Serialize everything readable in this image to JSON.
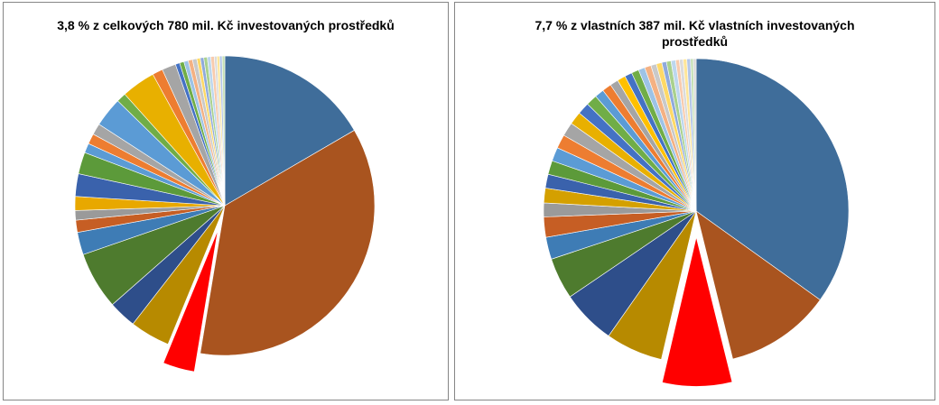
{
  "charts": [
    {
      "title": "3,8 % z celkových 780 mil. Kč investovaných prostředků"
    },
    {
      "title": "7,7 % z vlastních 387 mil. Kč vlastních investovaných prostředků"
    }
  ],
  "chart_data": [
    {
      "type": "pie",
      "title": "3,8 % z celkových 780 mil. Kč investovaných prostředků",
      "highlight_index": 2,
      "highlight_color": "#FF0000",
      "values": [
        17.7,
        38.4,
        3.8,
        4.6,
        3.2,
        6.6,
        2.6,
        1.4,
        1.1,
        1.6,
        2.6,
        2.5,
        1.1,
        1.2,
        1.3,
        3.4,
        1.1,
        3.9,
        1.2,
        1.6,
        0.5,
        0.5,
        0.5,
        0.5,
        0.5,
        0.4,
        0.4,
        0.4,
        0.4,
        0.4,
        0.3,
        0.3,
        0.3,
        0.3
      ],
      "colors": [
        "#3F6D9A",
        "#A9541F",
        "#FF0000",
        "#B78A00",
        "#2E4E8A",
        "#4E7B2E",
        "#3E7CB5",
        "#C65E24",
        "#9A9A9A",
        "#E8A800",
        "#3A62AC",
        "#5C9A3A",
        "#5B9BD5",
        "#ED7D31",
        "#A5A5A5",
        "#5B9BD5",
        "#70AD47",
        "#E8B000",
        "#ED7D31",
        "#A5A5A5",
        "#4472C4",
        "#70AD47",
        "#9DC3E6",
        "#F4B183",
        "#C9C9C9",
        "#FFD966",
        "#8FAADC",
        "#A9D18E",
        "#BDD7EE",
        "#F8CBAD",
        "#DBDBDB",
        "#FFE699",
        "#B4C7E7",
        "#C5E0B4"
      ]
    },
    {
      "type": "pie",
      "title": "7,7 % z vlastních 387 mil. Kč vlastních investovaných prostředků",
      "highlight_index": 2,
      "highlight_color": "#FF0000",
      "values": [
        35.7,
        11.5,
        7.7,
        6.2,
        5.9,
        4.5,
        2.4,
        2.2,
        1.5,
        1.6,
        1.5,
        1.5,
        1.5,
        1.5,
        1.5,
        1.4,
        1.3,
        1.2,
        1.0,
        1.0,
        0.9,
        0.9,
        0.8,
        0.8,
        0.7,
        0.7,
        0.6,
        0.6,
        0.5,
        0.5,
        0.5,
        0.4,
        0.4,
        0.4,
        0.4,
        0.3,
        0.3
      ],
      "colors": [
        "#3F6D9A",
        "#A9541F",
        "#FF0000",
        "#B78A00",
        "#2E4E8A",
        "#4E7B2E",
        "#3E7CB5",
        "#C65E24",
        "#9A9A9A",
        "#D4A000",
        "#3A62AC",
        "#5C9A3A",
        "#5B9BD5",
        "#ED7D31",
        "#A5A5A5",
        "#E8B000",
        "#4472C4",
        "#70AD47",
        "#5B9BD5",
        "#ED7D31",
        "#A5A5A5",
        "#FFC000",
        "#4472C4",
        "#70AD47",
        "#9DC3E6",
        "#F4B183",
        "#C9C9C9",
        "#FFD966",
        "#8FAADC",
        "#A9D18E",
        "#BDD7EE",
        "#F8CBAD",
        "#DBDBDB",
        "#FFE699",
        "#B4C7E7",
        "#C5E0B4",
        "#D9D9D9"
      ]
    }
  ]
}
